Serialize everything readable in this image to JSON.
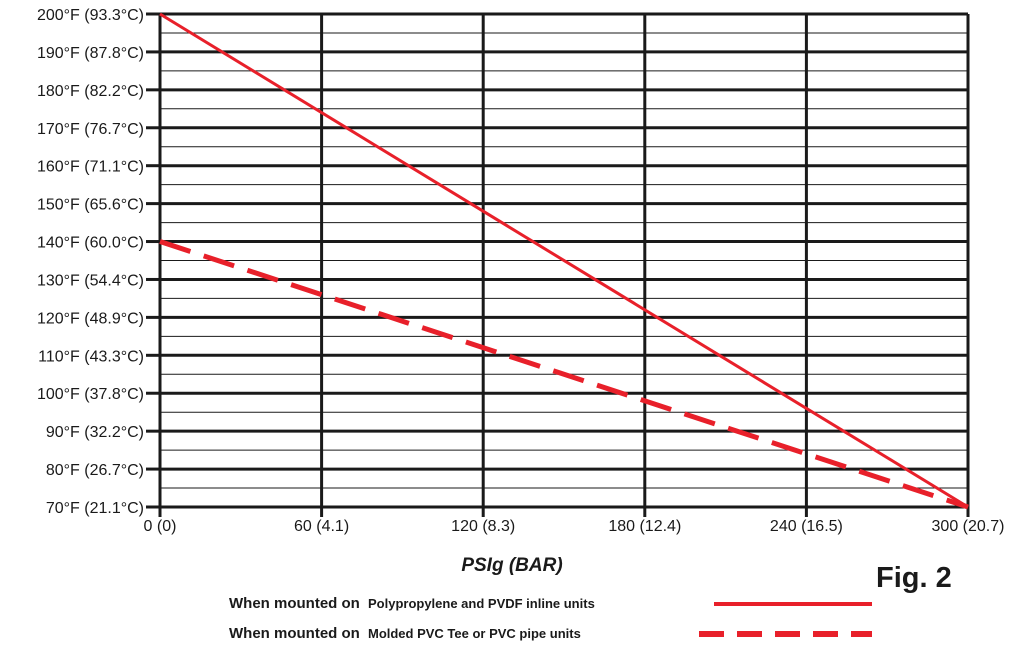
{
  "figure_label": "Fig. 2",
  "colors": {
    "series": "#e8202a",
    "grid": "#1a1a1a",
    "background": "#ffffff"
  },
  "chart_data": {
    "type": "line",
    "title": "",
    "xlabel": "PSIg (BAR)",
    "ylabel": "",
    "xlim": [
      0,
      300
    ],
    "ylim": [
      70,
      200
    ],
    "grid": true,
    "legend_placement": "bottom-right",
    "x_ticks": [
      {
        "value": 0,
        "label": "0 (0)"
      },
      {
        "value": 60,
        "label": "60 (4.1)"
      },
      {
        "value": 120,
        "label": "120 (8.3)"
      },
      {
        "value": 180,
        "label": "180 (12.4)"
      },
      {
        "value": 240,
        "label": "240 (16.5)"
      },
      {
        "value": 300,
        "label": "300 (20.7)"
      }
    ],
    "y_ticks": [
      {
        "value": 200,
        "label": "200°F (93.3°C)"
      },
      {
        "value": 190,
        "label": "190°F (87.8°C)"
      },
      {
        "value": 180,
        "label": "180°F (82.2°C)"
      },
      {
        "value": 170,
        "label": "170°F (76.7°C)"
      },
      {
        "value": 160,
        "label": "160°F (71.1°C)"
      },
      {
        "value": 150,
        "label": "150°F (65.6°C)"
      },
      {
        "value": 140,
        "label": "140°F (60.0°C)"
      },
      {
        "value": 130,
        "label": "130°F (54.4°C)"
      },
      {
        "value": 120,
        "label": "120°F (48.9°C)"
      },
      {
        "value": 110,
        "label": "110°F (43.3°C)"
      },
      {
        "value": 100,
        "label": "100°F (37.8°C)"
      },
      {
        "value": 90,
        "label": "90°F (32.2°C)"
      },
      {
        "value": 80,
        "label": "80°F (26.7°C)"
      },
      {
        "value": 70,
        "label": "70°F (21.1°C)"
      }
    ],
    "minor_y_step": 5,
    "series": [
      {
        "style": "solid",
        "x": [
          0,
          300
        ],
        "y": [
          200,
          70
        ]
      },
      {
        "style": "dashed",
        "x": [
          0,
          300
        ],
        "y": [
          140,
          70
        ]
      }
    ],
    "legend": [
      {
        "lead": "When mounted on",
        "detail": "Polypropylene and PVDF inline units",
        "style": "solid"
      },
      {
        "lead": "When mounted on",
        "detail": "Molded PVC Tee or PVC pipe units",
        "style": "dashed"
      }
    ]
  }
}
